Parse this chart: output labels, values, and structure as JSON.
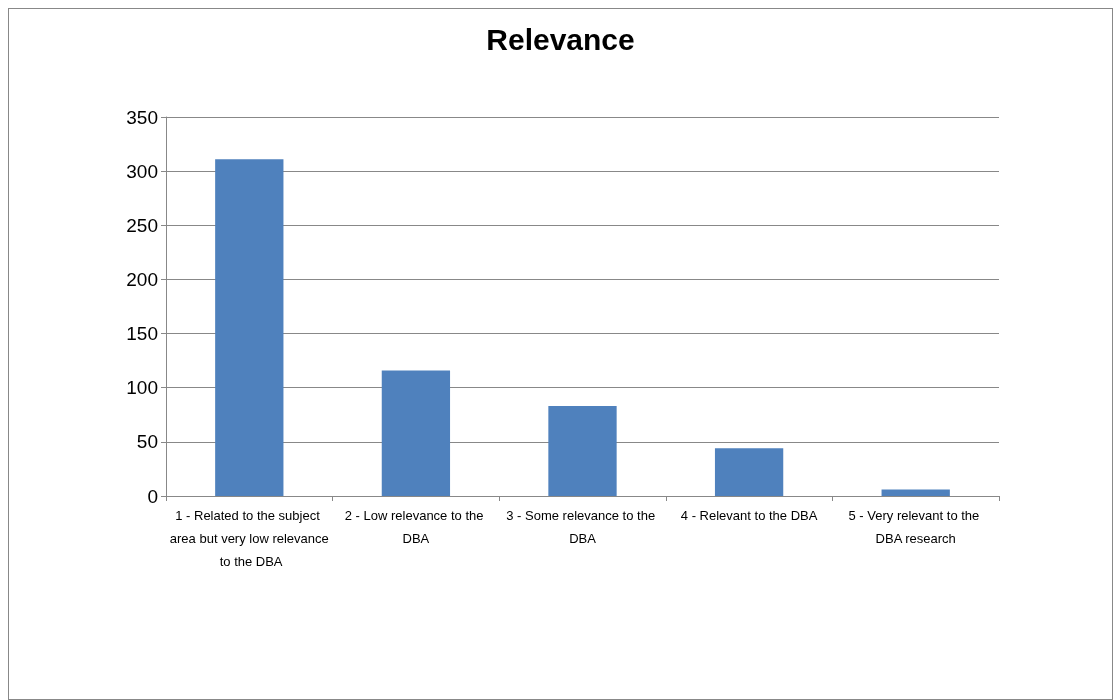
{
  "chart_data": {
    "type": "bar",
    "title": "Relevance",
    "categories": [
      "1 - Related to the subject area but very low relevance to the DBA",
      "2 - Low relevance to the DBA",
      "3 - Some relevance to the DBA",
      "4 - Relevant to the DBA",
      "5 - Very relevant to the DBA research"
    ],
    "values": [
      311,
      116,
      83,
      44,
      6
    ],
    "color": "#4f81bd",
    "ylim": [
      0,
      350
    ],
    "yticks": [
      0,
      50,
      100,
      150,
      200,
      250,
      300,
      350
    ],
    "grid": "y"
  }
}
